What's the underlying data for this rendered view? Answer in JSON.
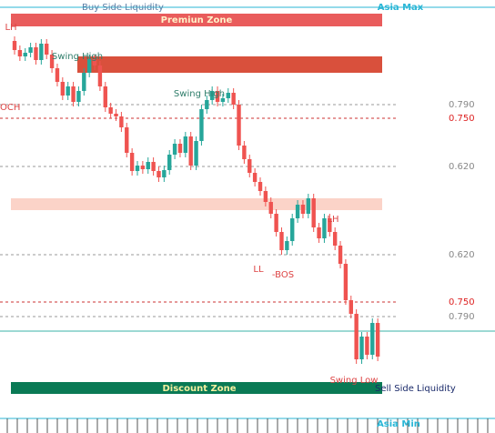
{
  "header": {
    "buy_side": "Buy Side Liquidity",
    "asia_max": "Asia Max"
  },
  "zones": {
    "premium": "Premiun Zone",
    "discount": "Discount Zone"
  },
  "annotations": {
    "swing_high_1": "Swing High",
    "swing_high_2": "Swing High",
    "lh_1": "LH",
    "lh_2": "LH",
    "choch": "OCH",
    "ll": "LL",
    "bos": "-BOS",
    "swing_low": "Swing Low",
    "sell_side": "Sell Side Liquidity"
  },
  "levels": [
    "0.790",
    "0.750",
    "0.620",
    "0.620",
    "0.750",
    "0.790"
  ],
  "footer": {
    "asia_min": "Asia Min"
  }
}
